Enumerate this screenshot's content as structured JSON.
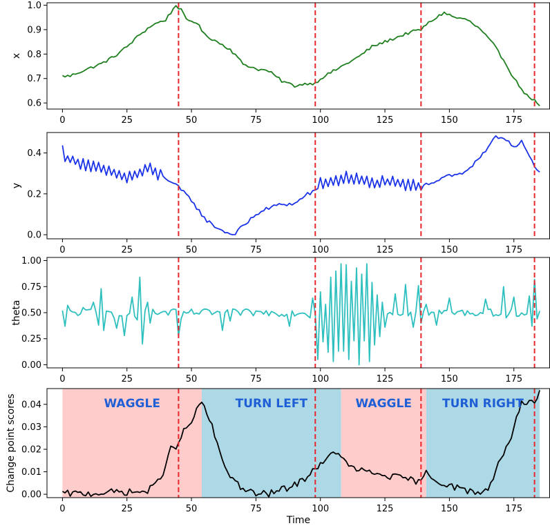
{
  "chart_data": {
    "type": "line",
    "layout": "4 stacked subplots sharing x-axis",
    "xlabel": "Time",
    "xlim": [
      -6,
      189
    ],
    "xticks": [
      0,
      25,
      50,
      75,
      100,
      125,
      150,
      175
    ],
    "change_points": [
      45,
      98,
      139,
      183
    ],
    "change_point_color": "#e8262a",
    "panels": [
      {
        "id": "x",
        "ylabel": "x",
        "color": "#1e7f1e",
        "ylim": [
          0.575,
          1.01
        ],
        "yticks": [
          0.6,
          0.7,
          0.8,
          0.9,
          1.0
        ],
        "ytick_labels": [
          "0.6",
          "0.7",
          "0.8",
          "0.9",
          "1.0"
        ],
        "keypoints": [
          [
            0,
            0.71
          ],
          [
            3,
            0.71
          ],
          [
            5,
            0.72
          ],
          [
            10,
            0.74
          ],
          [
            15,
            0.76
          ],
          [
            20,
            0.79
          ],
          [
            25,
            0.83
          ],
          [
            30,
            0.88
          ],
          [
            35,
            0.92
          ],
          [
            40,
            0.94
          ],
          [
            44,
            1.0
          ],
          [
            46,
            0.98
          ],
          [
            48,
            0.94
          ],
          [
            52,
            0.93
          ],
          [
            55,
            0.88
          ],
          [
            60,
            0.85
          ],
          [
            65,
            0.82
          ],
          [
            70,
            0.76
          ],
          [
            75,
            0.74
          ],
          [
            80,
            0.73
          ],
          [
            85,
            0.69
          ],
          [
            90,
            0.67
          ],
          [
            95,
            0.68
          ],
          [
            98,
            0.68
          ],
          [
            100,
            0.7
          ],
          [
            105,
            0.73
          ],
          [
            110,
            0.76
          ],
          [
            115,
            0.79
          ],
          [
            120,
            0.83
          ],
          [
            125,
            0.85
          ],
          [
            130,
            0.87
          ],
          [
            135,
            0.89
          ],
          [
            139,
            0.9
          ],
          [
            141,
            0.92
          ],
          [
            145,
            0.95
          ],
          [
            148,
            0.97
          ],
          [
            152,
            0.95
          ],
          [
            157,
            0.94
          ],
          [
            162,
            0.9
          ],
          [
            167,
            0.84
          ],
          [
            172,
            0.76
          ],
          [
            175,
            0.7
          ],
          [
            180,
            0.63
          ],
          [
            183,
            0.61
          ],
          [
            184,
            0.6
          ],
          [
            185,
            0.585
          ]
        ],
        "noise": 0.006
      },
      {
        "id": "y",
        "ylabel": "y",
        "color": "#1a32e8",
        "ylim": [
          -0.02,
          0.5
        ],
        "yticks": [
          0.0,
          0.2,
          0.4
        ],
        "ytick_labels": [
          "0.0",
          "0.2",
          "0.4"
        ],
        "keypoints": [
          [
            0,
            0.41
          ],
          [
            2,
            0.37
          ],
          [
            5,
            0.36
          ],
          [
            10,
            0.34
          ],
          [
            15,
            0.32
          ],
          [
            20,
            0.3
          ],
          [
            25,
            0.28
          ],
          [
            30,
            0.3
          ],
          [
            33,
            0.33
          ],
          [
            36,
            0.3
          ],
          [
            40,
            0.28
          ],
          [
            45,
            0.23
          ],
          [
            50,
            0.17
          ],
          [
            55,
            0.08
          ],
          [
            58,
            0.05
          ],
          [
            62,
            0.02
          ],
          [
            66,
            0.0
          ],
          [
            70,
            0.04
          ],
          [
            75,
            0.1
          ],
          [
            80,
            0.13
          ],
          [
            85,
            0.15
          ],
          [
            90,
            0.15
          ],
          [
            95,
            0.2
          ],
          [
            98,
            0.21
          ],
          [
            99,
            0.25
          ],
          [
            105,
            0.26
          ],
          [
            110,
            0.28
          ],
          [
            115,
            0.27
          ],
          [
            120,
            0.25
          ],
          [
            125,
            0.26
          ],
          [
            130,
            0.25
          ],
          [
            135,
            0.24
          ],
          [
            139,
            0.24
          ],
          [
            140,
            0.25
          ],
          [
            145,
            0.26
          ],
          [
            148,
            0.29
          ],
          [
            152,
            0.29
          ],
          [
            155,
            0.3
          ],
          [
            160,
            0.35
          ],
          [
            165,
            0.42
          ],
          [
            168,
            0.48
          ],
          [
            172,
            0.47
          ],
          [
            175,
            0.43
          ],
          [
            178,
            0.46
          ],
          [
            181,
            0.38
          ],
          [
            183,
            0.33
          ],
          [
            185,
            0.3
          ]
        ],
        "noise": 0.01,
        "zigzag": [
          [
            0,
            38,
            0.022
          ],
          [
            99,
            139,
            0.022
          ]
        ]
      },
      {
        "id": "theta",
        "ylabel": "theta",
        "color": "#2ebfbf",
        "ylim": [
          -0.03,
          1.03
        ],
        "yticks": [
          0.0,
          0.25,
          0.5,
          0.75,
          1.0
        ],
        "ytick_labels": [
          "0.00",
          "0.25",
          "0.50",
          "0.75",
          "1.00"
        ],
        "baseline": 0.5,
        "spikes": [
          [
            1,
            0.37
          ],
          [
            2,
            0.57
          ],
          [
            8,
            0.55
          ],
          [
            12,
            0.6
          ],
          [
            14,
            0.38
          ],
          [
            15,
            0.73
          ],
          [
            16,
            0.33
          ],
          [
            20,
            0.45
          ],
          [
            21,
            0.35
          ],
          [
            24,
            0.28
          ],
          [
            27,
            0.65
          ],
          [
            29,
            0.43
          ],
          [
            30,
            0.84
          ],
          [
            31,
            0.2
          ],
          [
            33,
            0.6
          ],
          [
            34,
            0.4
          ],
          [
            45,
            0.28
          ],
          [
            46,
            0.44
          ],
          [
            62,
            0.33
          ],
          [
            65,
            0.42
          ],
          [
            88,
            0.37
          ],
          [
            96,
            0.45
          ],
          [
            97,
            0.64
          ],
          [
            99,
            0.05
          ],
          [
            100,
            0.7
          ],
          [
            101,
            0.22
          ],
          [
            102,
            0.58
          ],
          [
            103,
            0.12
          ],
          [
            104,
            0.84
          ],
          [
            105,
            0.03
          ],
          [
            106,
            0.9
          ],
          [
            107,
            0.13
          ],
          [
            108,
            0.97
          ],
          [
            109,
            0.13
          ],
          [
            110,
            0.96
          ],
          [
            111,
            0.05
          ],
          [
            112,
            0.8
          ],
          [
            113,
            0.23
          ],
          [
            114,
            0.93
          ],
          [
            115,
            0.0
          ],
          [
            116,
            0.87
          ],
          [
            117,
            0.23
          ],
          [
            118,
            0.97
          ],
          [
            119,
            0.03
          ],
          [
            120,
            0.79
          ],
          [
            121,
            0.19
          ],
          [
            122,
            0.67
          ],
          [
            123,
            0.27
          ],
          [
            124,
            0.6
          ],
          [
            125,
            0.36
          ],
          [
            129,
            0.68
          ],
          [
            133,
            0.77
          ],
          [
            136,
            0.36
          ],
          [
            138,
            0.76
          ],
          [
            139,
            0.4
          ],
          [
            141,
            0.58
          ],
          [
            145,
            0.38
          ],
          [
            150,
            0.64
          ],
          [
            164,
            0.63
          ],
          [
            168,
            0.48
          ],
          [
            171,
            0.75
          ],
          [
            172,
            0.45
          ],
          [
            175,
            0.65
          ],
          [
            181,
            0.66
          ],
          [
            182,
            0.37
          ],
          [
            183,
            0.82
          ],
          [
            184,
            0.44
          ]
        ],
        "noise": 0.035
      },
      {
        "id": "scores",
        "ylabel": "Change point scores",
        "color": "#000000",
        "ylim": [
          -0.0015,
          0.047
        ],
        "yticks": [
          0.0,
          0.01,
          0.02,
          0.03,
          0.04
        ],
        "ytick_labels": [
          "0.00",
          "0.01",
          "0.02",
          "0.03",
          "0.04"
        ],
        "keypoints": [
          [
            0,
            0.0003
          ],
          [
            10,
            0.0003
          ],
          [
            20,
            0.001
          ],
          [
            30,
            0.001
          ],
          [
            33,
            0.0015
          ],
          [
            36,
            0.004
          ],
          [
            39,
            0.01
          ],
          [
            42,
            0.02
          ],
          [
            45,
            0.022
          ],
          [
            47,
            0.028
          ],
          [
            50,
            0.032
          ],
          [
            53,
            0.04
          ],
          [
            55,
            0.039
          ],
          [
            58,
            0.03
          ],
          [
            61,
            0.018
          ],
          [
            64,
            0.01
          ],
          [
            67,
            0.006
          ],
          [
            70,
            0.002
          ],
          [
            75,
            0.0002
          ],
          [
            80,
            0.0002
          ],
          [
            85,
            0.002
          ],
          [
            90,
            0.004
          ],
          [
            95,
            0.008
          ],
          [
            98,
            0.012
          ],
          [
            102,
            0.014
          ],
          [
            105,
            0.02
          ],
          [
            108,
            0.016
          ],
          [
            112,
            0.012
          ],
          [
            117,
            0.01
          ],
          [
            122,
            0.009
          ],
          [
            127,
            0.008
          ],
          [
            132,
            0.007
          ],
          [
            137,
            0.006
          ],
          [
            139,
            0.005
          ],
          [
            141,
            0.01
          ],
          [
            145,
            0.006
          ],
          [
            150,
            0.004
          ],
          [
            155,
            0.002
          ],
          [
            160,
            0.001
          ],
          [
            163,
            0.0008
          ],
          [
            166,
            0.004
          ],
          [
            168,
            0.012
          ],
          [
            171,
            0.018
          ],
          [
            174,
            0.025
          ],
          [
            176,
            0.035
          ],
          [
            178,
            0.04
          ],
          [
            181,
            0.042
          ],
          [
            184,
            0.041
          ],
          [
            185,
            0.045
          ]
        ],
        "noise": 0.0015,
        "regions": [
          {
            "start": 0,
            "end": 54,
            "label": "WAGGLE",
            "color": "#ffcccc"
          },
          {
            "start": 54,
            "end": 108,
            "label": "TURN LEFT",
            "color": "#add8e6"
          },
          {
            "start": 108,
            "end": 141,
            "label": "WAGGLE",
            "color": "#ffcccc"
          },
          {
            "start": 141,
            "end": 185,
            "label": "TURN RIGHT",
            "color": "#add8e6"
          }
        ]
      }
    ]
  }
}
